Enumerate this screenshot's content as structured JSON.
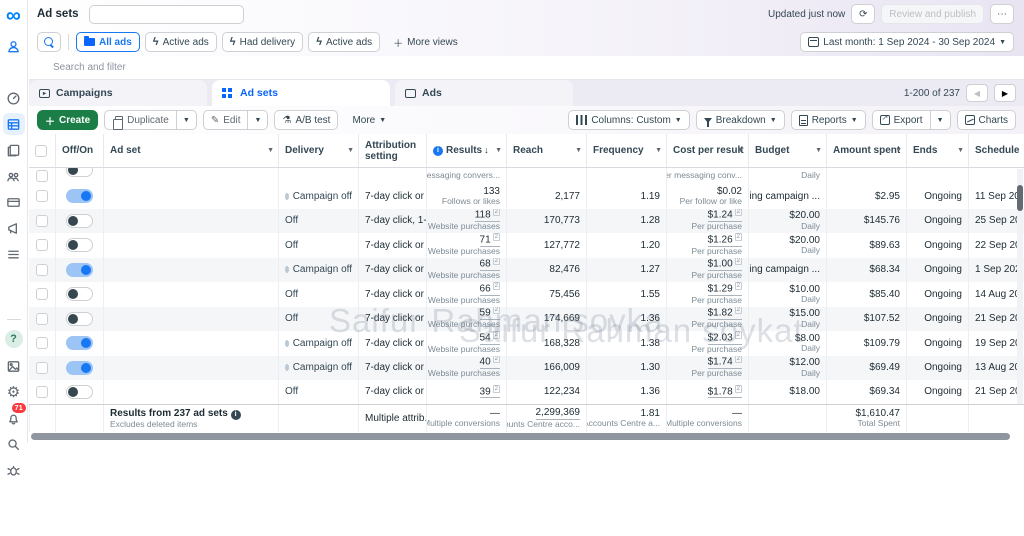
{
  "app": {
    "page_title": "Ad sets",
    "updated_status": "Updated just now",
    "review_button": "Review and publish",
    "more_button": "⋯",
    "date_range": "Last month: 1 Sep 2024 - 30 Sep 2024"
  },
  "sidebar": {
    "notification_count": "71",
    "icons": [
      "meta-logo",
      "business-suite-icon",
      "dashboard-gauge-icon",
      "campaigns-table-icon",
      "ads-reporting-icon",
      "audiences-icon",
      "billing-card-icon",
      "promote-megaphone-icon",
      "all-tools-menu-icon",
      "help-icon",
      "media-library-icon",
      "settings-gear-icon",
      "notifications-bell-icon",
      "search-icon",
      "report-bug-icon"
    ]
  },
  "filters": {
    "search_placeholder": "Search and filter",
    "views": [
      {
        "label": "All ads",
        "icon": "folder-icon",
        "active": true
      },
      {
        "label": "Active ads",
        "icon": "bolt-icon",
        "active": false
      },
      {
        "label": "Had delivery",
        "icon": "bolt-icon",
        "active": false
      },
      {
        "label": "Active ads",
        "icon": "bolt-icon",
        "active": false
      },
      {
        "label": "More views",
        "icon": "plus-icon",
        "active": false
      }
    ]
  },
  "tabs": {
    "items": [
      {
        "label": "Campaigns",
        "active": false
      },
      {
        "label": "Ad sets",
        "active": true
      },
      {
        "label": "Ads",
        "active": false
      }
    ],
    "pagination": "1-200 of 237"
  },
  "toolbar": {
    "create": "Create",
    "duplicate": "Duplicate",
    "edit": "Edit",
    "ab_test": "A/B test",
    "more": "More",
    "columns": "Columns: Custom",
    "breakdown": "Breakdown",
    "reports": "Reports",
    "export": "Export",
    "charts": "Charts"
  },
  "table": {
    "columns": [
      {
        "key": "cb",
        "label": ""
      },
      {
        "key": "offon",
        "label": "Off/On"
      },
      {
        "key": "adset",
        "label": "Ad set",
        "caret": true
      },
      {
        "key": "delivery",
        "label": "Delivery",
        "caret": true
      },
      {
        "key": "attr",
        "label": "Attribution setting"
      },
      {
        "key": "res",
        "label": "Results",
        "caret": true,
        "info": true,
        "sort": true
      },
      {
        "key": "reach",
        "label": "Reach",
        "caret": true
      },
      {
        "key": "freq",
        "label": "Frequency",
        "caret": true
      },
      {
        "key": "cost",
        "label": "Cost per result",
        "caret": true
      },
      {
        "key": "budget",
        "label": "Budget",
        "caret": true
      },
      {
        "key": "spent",
        "label": "Amount spent",
        "caret": true
      },
      {
        "key": "ends",
        "label": "Ends",
        "caret": true
      },
      {
        "key": "sched",
        "label": "Schedule"
      }
    ],
    "rows": [
      {
        "partial": true,
        "toggle": "off",
        "res_sub": "Messaging convers...",
        "cost_sub": "Per messaging conv...",
        "budget_sub": "Daily"
      },
      {
        "toggle": "on",
        "delivery": "Campaign off",
        "dot": true,
        "attr": "7-day click or ...",
        "res": "133",
        "res_sub": "Follows or likes",
        "reach": "2,177",
        "freq": "1.19",
        "cost": "$0.02",
        "cost_sub": "Per follow or like",
        "budget": "Using campaign ...",
        "spent": "$2.95",
        "ends": "Ongoing",
        "sched": "11 Sep 20"
      },
      {
        "toggle": "off",
        "delivery": "Off",
        "attr": "7-day click, 1-...",
        "res": "118",
        "res_ref": true,
        "res_link": true,
        "res_sub": "Website purchases",
        "reach": "170,773",
        "freq": "1.28",
        "cost": "$1.24",
        "cost_ref": true,
        "cost_link": true,
        "cost_sub": "Per purchase",
        "budget": "$20.00",
        "budget_sub": "Daily",
        "spent": "$145.76",
        "ends": "Ongoing",
        "sched": "25 Sep 20",
        "alt": true
      },
      {
        "toggle": "off",
        "delivery": "Off",
        "attr": "7-day click or ...",
        "res": "71",
        "res_ref": true,
        "res_link": true,
        "res_sub": "Website purchases",
        "reach": "127,772",
        "freq": "1.20",
        "cost": "$1.26",
        "cost_ref": true,
        "cost_link": true,
        "cost_sub": "Per purchase",
        "budget": "$20.00",
        "budget_sub": "Daily",
        "spent": "$89.63",
        "ends": "Ongoing",
        "sched": "22 Sep 20"
      },
      {
        "toggle": "on",
        "delivery": "Campaign off",
        "dot": true,
        "attr": "7-day click or ...",
        "res": "68",
        "res_ref": true,
        "res_link": true,
        "res_sub": "Website purchases",
        "reach": "82,476",
        "freq": "1.27",
        "cost": "$1.00",
        "cost_ref": true,
        "cost_link": true,
        "cost_sub": "Per purchase",
        "budget": "Using campaign ...",
        "spent": "$68.34",
        "ends": "Ongoing",
        "sched": "1 Sep 202",
        "alt": true
      },
      {
        "toggle": "off",
        "delivery": "Off",
        "attr": "7-day click or ...",
        "res": "66",
        "res_ref": true,
        "res_link": true,
        "res_sub": "Website purchases",
        "reach": "75,456",
        "freq": "1.55",
        "cost": "$1.29",
        "cost_ref": true,
        "cost_link": true,
        "cost_sub": "Per purchase",
        "budget": "$10.00",
        "budget_sub": "Daily",
        "spent": "$85.40",
        "ends": "Ongoing",
        "sched": "14 Aug 20"
      },
      {
        "toggle": "off",
        "delivery": "Off",
        "attr": "7-day click or ...",
        "res": "59",
        "res_ref": true,
        "res_link": true,
        "res_sub": "Website purchases",
        "reach": "174,669",
        "freq": "1.36",
        "cost": "$1.82",
        "cost_ref": true,
        "cost_link": true,
        "cost_sub": "Per purchase",
        "budget": "$15.00",
        "budget_sub": "Daily",
        "spent": "$107.52",
        "ends": "Ongoing",
        "sched": "21 Sep 20",
        "alt": true
      },
      {
        "toggle": "on",
        "delivery": "Campaign off",
        "dot": true,
        "attr": "7-day click or ...",
        "res": "54",
        "res_ref": true,
        "res_link": true,
        "res_sub": "Website purchases",
        "reach": "168,328",
        "freq": "1.38",
        "cost": "$2.03",
        "cost_ref": true,
        "cost_link": true,
        "cost_sub": "Per purchase",
        "budget": "$8.00",
        "budget_sub": "Daily",
        "spent": "$109.79",
        "ends": "Ongoing",
        "sched": "19 Sep 20"
      },
      {
        "toggle": "on",
        "delivery": "Campaign off",
        "dot": true,
        "attr": "7-day click or ...",
        "res": "40",
        "res_ref": true,
        "res_link": true,
        "res_sub": "Website purchases",
        "reach": "166,009",
        "freq": "1.30",
        "cost": "$1.74",
        "cost_ref": true,
        "cost_link": true,
        "cost_sub": "Per purchase",
        "budget": "$12.00",
        "budget_sub": "Daily",
        "spent": "$69.49",
        "ends": "Ongoing",
        "sched": "13 Aug 20",
        "alt": true
      },
      {
        "toggle": "off",
        "delivery": "Off",
        "attr": "7-day click or ...",
        "res": "39",
        "res_ref": true,
        "res_link": true,
        "reach": "122,234",
        "freq": "1.36",
        "cost": "$1.78",
        "cost_ref": true,
        "cost_link": true,
        "budget": "$18.00",
        "spent": "$69.34",
        "ends": "Ongoing",
        "sched": "21 Sep 20",
        "compact": true
      }
    ],
    "summary": {
      "label": "Results from 237 ad sets",
      "sublabel": "Excludes deleted items",
      "attr": "Multiple attrib...",
      "res": "—",
      "res_sub": "Multiple conversions",
      "reach": "2,299,369",
      "reach_sub": "Accounts Centre acco...",
      "freq": "1.81",
      "freq_sub": "Per Accounts Centre a...",
      "cost": "—",
      "cost_sub": "Multiple conversions",
      "spent": "$1,610.47",
      "spent_sub": "Total Spent"
    }
  },
  "watermark": {
    "top": "Saifur Rahman soyka",
    "bottom": "Saifur Rahman soykat"
  },
  "colors": {
    "accent": "#0866ff",
    "create_green": "#1b7e46",
    "toggle_on": "#1877f2",
    "badge_red": "#fa383e"
  }
}
